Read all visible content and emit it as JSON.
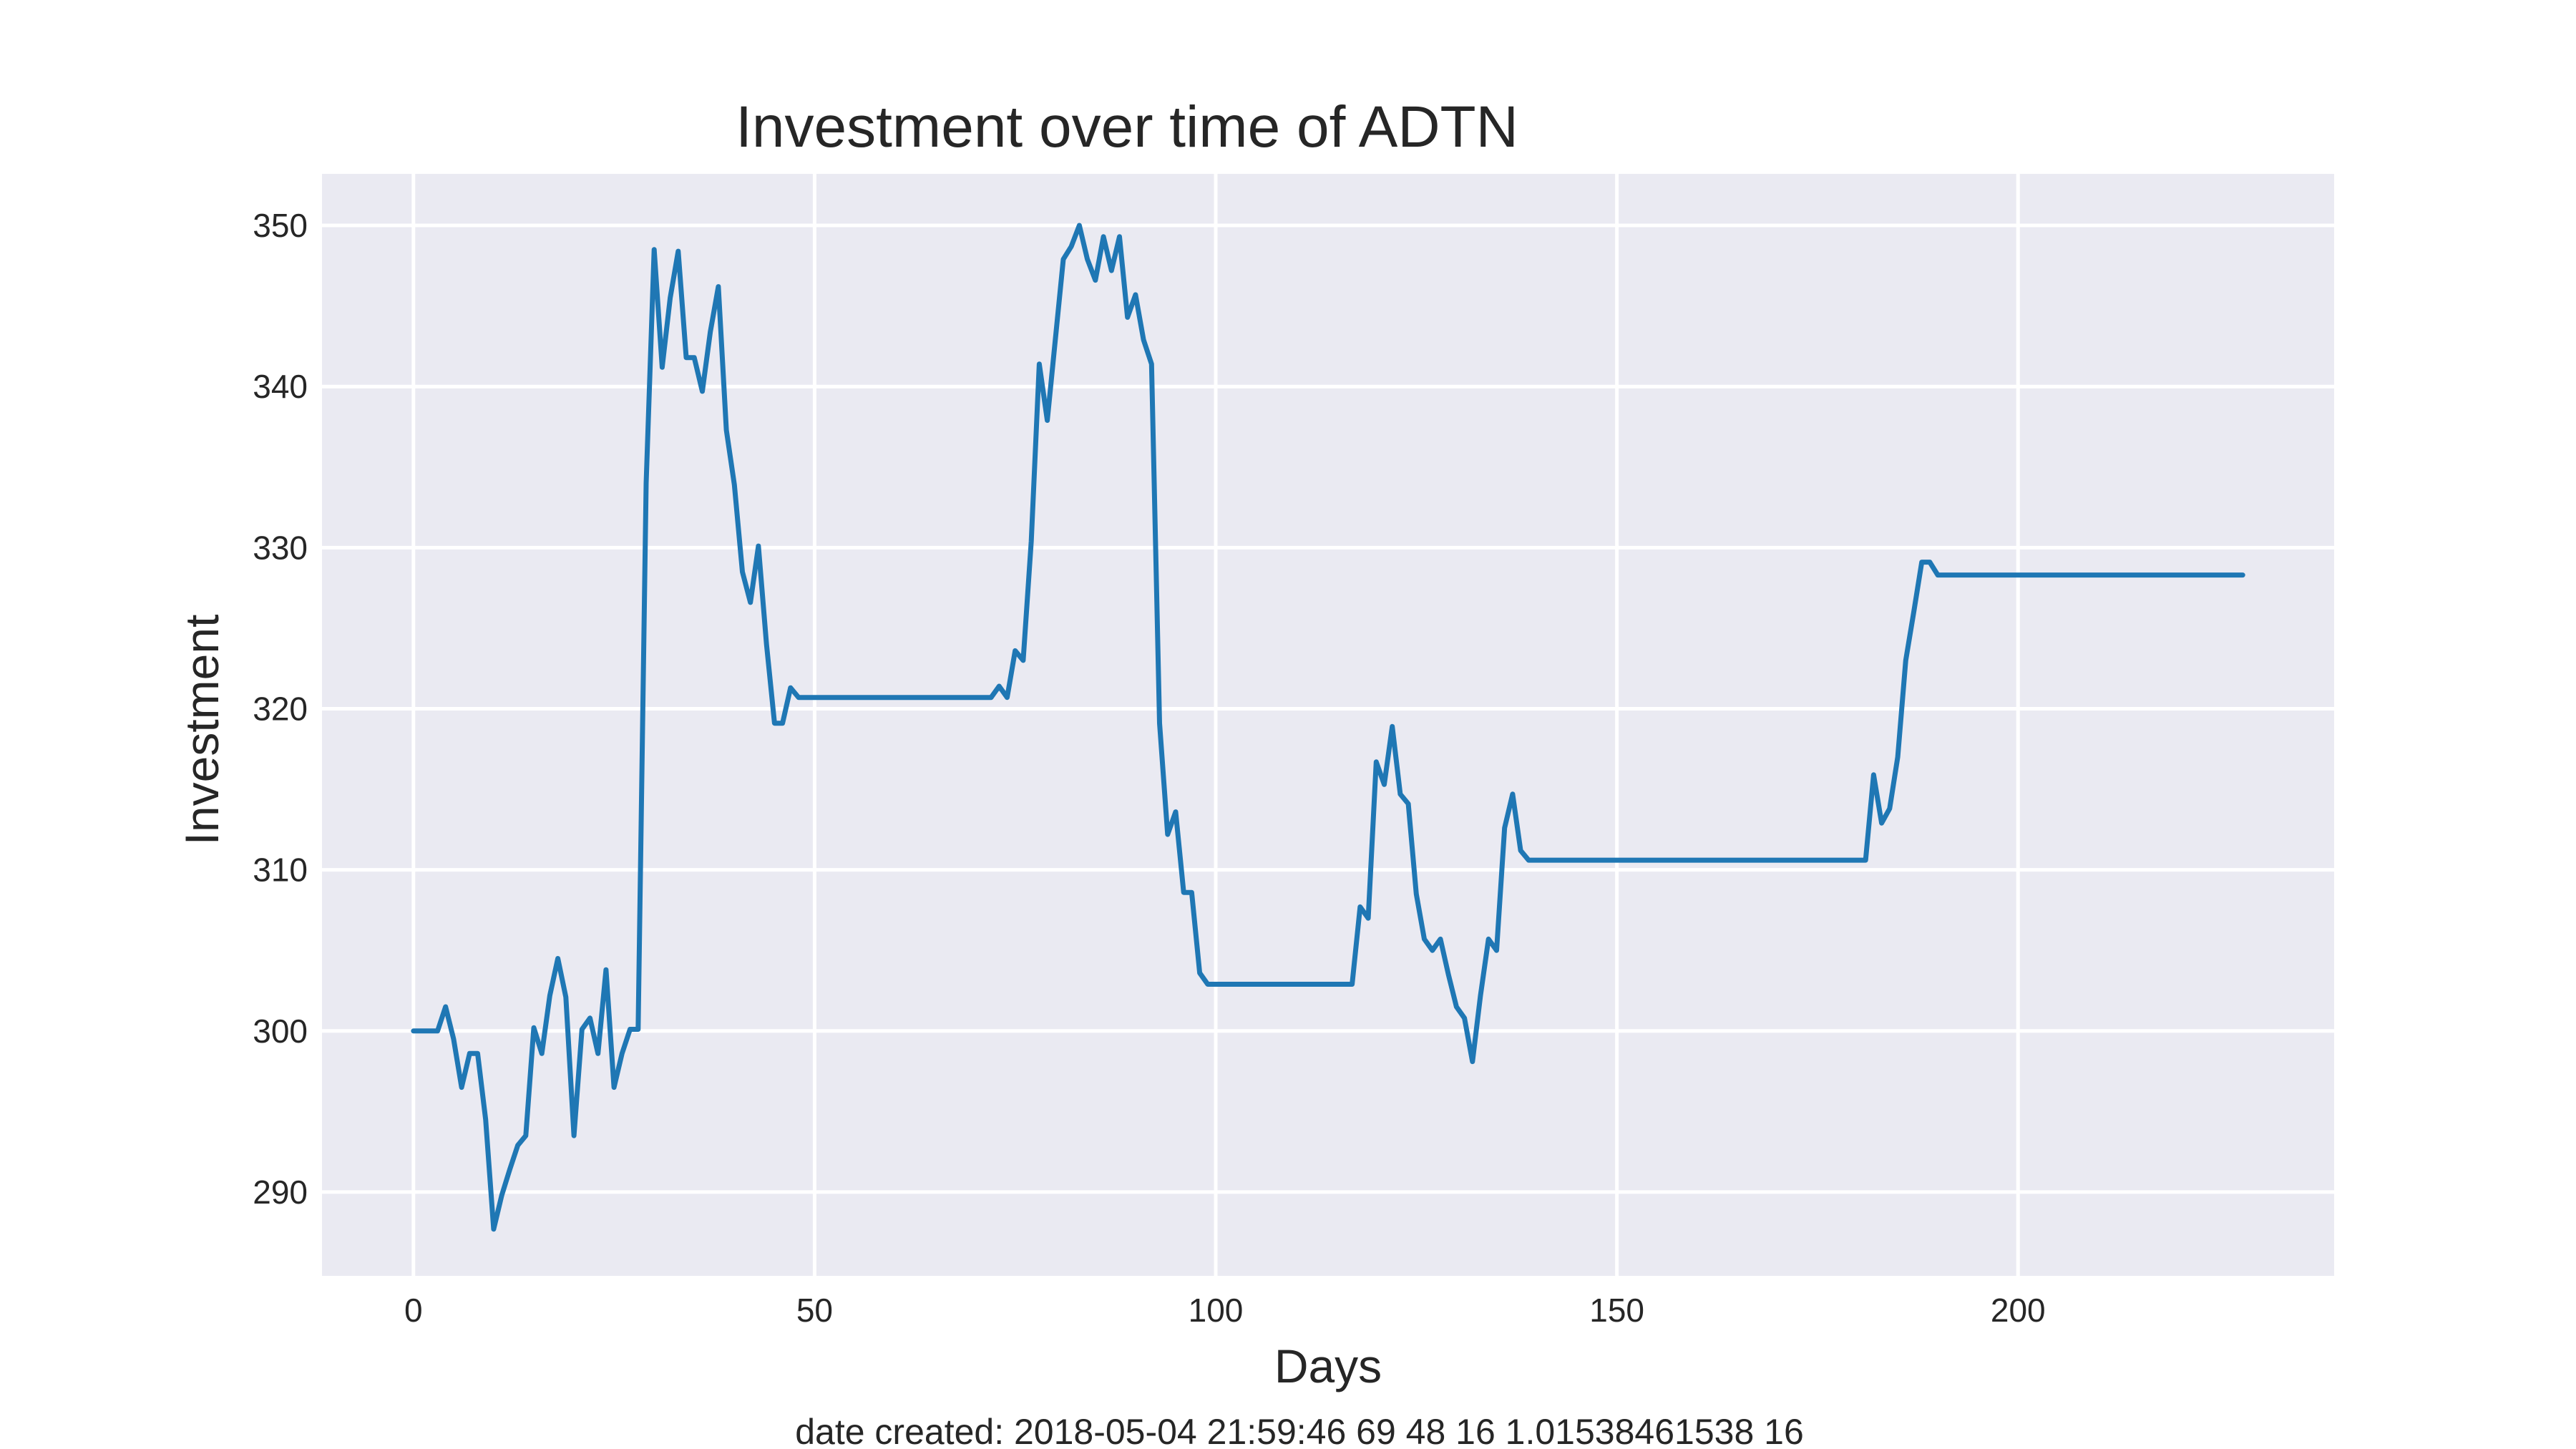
{
  "chart_data": {
    "type": "line",
    "title": "Investment over time of ADTN",
    "xlabel": "Days",
    "ylabel": "Investment",
    "caption": "date created: 2018-05-04 21:59:46 69 48 16 1.01538461538 16",
    "xlim": [
      -11.4,
      239.4
    ],
    "ylim": [
      284.8,
      353.2
    ],
    "xticks": [
      0,
      50,
      100,
      150,
      200
    ],
    "yticks": [
      290,
      300,
      310,
      320,
      330,
      340,
      350
    ],
    "grid": true,
    "colors": {
      "background": "#eaeaf2",
      "grid": "#ffffff",
      "line": "#1f77b4"
    },
    "series": [
      {
        "points": [
          [
            0,
            300
          ],
          [
            3,
            300
          ],
          [
            4,
            301.5
          ],
          [
            5,
            299.5
          ],
          [
            6,
            296.5
          ],
          [
            7,
            298.6
          ],
          [
            8,
            298.6
          ],
          [
            9,
            294.5
          ],
          [
            10,
            287.7
          ],
          [
            11,
            289.8
          ],
          [
            12,
            291.4
          ],
          [
            13,
            292.9
          ],
          [
            14,
            293.5
          ],
          [
            15,
            300.2
          ],
          [
            16,
            298.6
          ],
          [
            17,
            302.2
          ],
          [
            18,
            304.5
          ],
          [
            19,
            302.1
          ],
          [
            20,
            293.5
          ],
          [
            21,
            300.1
          ],
          [
            22,
            300.8
          ],
          [
            23,
            298.6
          ],
          [
            24,
            303.8
          ],
          [
            25,
            296.5
          ],
          [
            26,
            298.6
          ],
          [
            27,
            300.1
          ],
          [
            28,
            300.1
          ],
          [
            29,
            334
          ],
          [
            30,
            348.5
          ],
          [
            31,
            341.2
          ],
          [
            32,
            345.5
          ],
          [
            33,
            348.4
          ],
          [
            34,
            341.8
          ],
          [
            35,
            341.8
          ],
          [
            36,
            339.7
          ],
          [
            37,
            343.4
          ],
          [
            38,
            346.2
          ],
          [
            39,
            337.3
          ],
          [
            40,
            333.9
          ],
          [
            41,
            328.5
          ],
          [
            42,
            326.6
          ],
          [
            43,
            330.1
          ],
          [
            44,
            324
          ],
          [
            45,
            319.1
          ],
          [
            46,
            319.1
          ],
          [
            47,
            321.3
          ],
          [
            48,
            320.7
          ],
          [
            70,
            320.7
          ],
          [
            72,
            320.7
          ],
          [
            73,
            321.4
          ],
          [
            74,
            320.7
          ],
          [
            75,
            323.6
          ],
          [
            76,
            323
          ],
          [
            77,
            330.4
          ],
          [
            78,
            341.4
          ],
          [
            79,
            337.9
          ],
          [
            80,
            342.9
          ],
          [
            81,
            347.9
          ],
          [
            82,
            348.7
          ],
          [
            83,
            350
          ],
          [
            84,
            347.9
          ],
          [
            85,
            346.6
          ],
          [
            86,
            349.3
          ],
          [
            87,
            347.2
          ],
          [
            88,
            349.3
          ],
          [
            89,
            344.3
          ],
          [
            90,
            345.7
          ],
          [
            91,
            342.9
          ],
          [
            92,
            341.4
          ],
          [
            93,
            319.1
          ],
          [
            94,
            312.2
          ],
          [
            95,
            313.6
          ],
          [
            96,
            308.6
          ],
          [
            97,
            308.6
          ],
          [
            98,
            303.6
          ],
          [
            99,
            302.9
          ],
          [
            117,
            302.9
          ],
          [
            118,
            307.7
          ],
          [
            119,
            307
          ],
          [
            120,
            316.7
          ],
          [
            121,
            315.3
          ],
          [
            122,
            318.9
          ],
          [
            123,
            314.7
          ],
          [
            124,
            314.1
          ],
          [
            125,
            308.5
          ],
          [
            126,
            305.7
          ],
          [
            127,
            305
          ],
          [
            128,
            305.7
          ],
          [
            129,
            303.5
          ],
          [
            130,
            301.5
          ],
          [
            131,
            300.8
          ],
          [
            132,
            298.1
          ],
          [
            133,
            302.2
          ],
          [
            134,
            305.7
          ],
          [
            135,
            305
          ],
          [
            136,
            312.6
          ],
          [
            137,
            314.7
          ],
          [
            138,
            311.2
          ],
          [
            139,
            310.6
          ],
          [
            181,
            310.6
          ],
          [
            182,
            315.9
          ],
          [
            183,
            312.9
          ],
          [
            184,
            313.8
          ],
          [
            185,
            317
          ],
          [
            186,
            323
          ],
          [
            187,
            326
          ],
          [
            188,
            329.1
          ],
          [
            189,
            329.1
          ],
          [
            190,
            328.3
          ],
          [
            228,
            328.3
          ]
        ]
      }
    ]
  }
}
